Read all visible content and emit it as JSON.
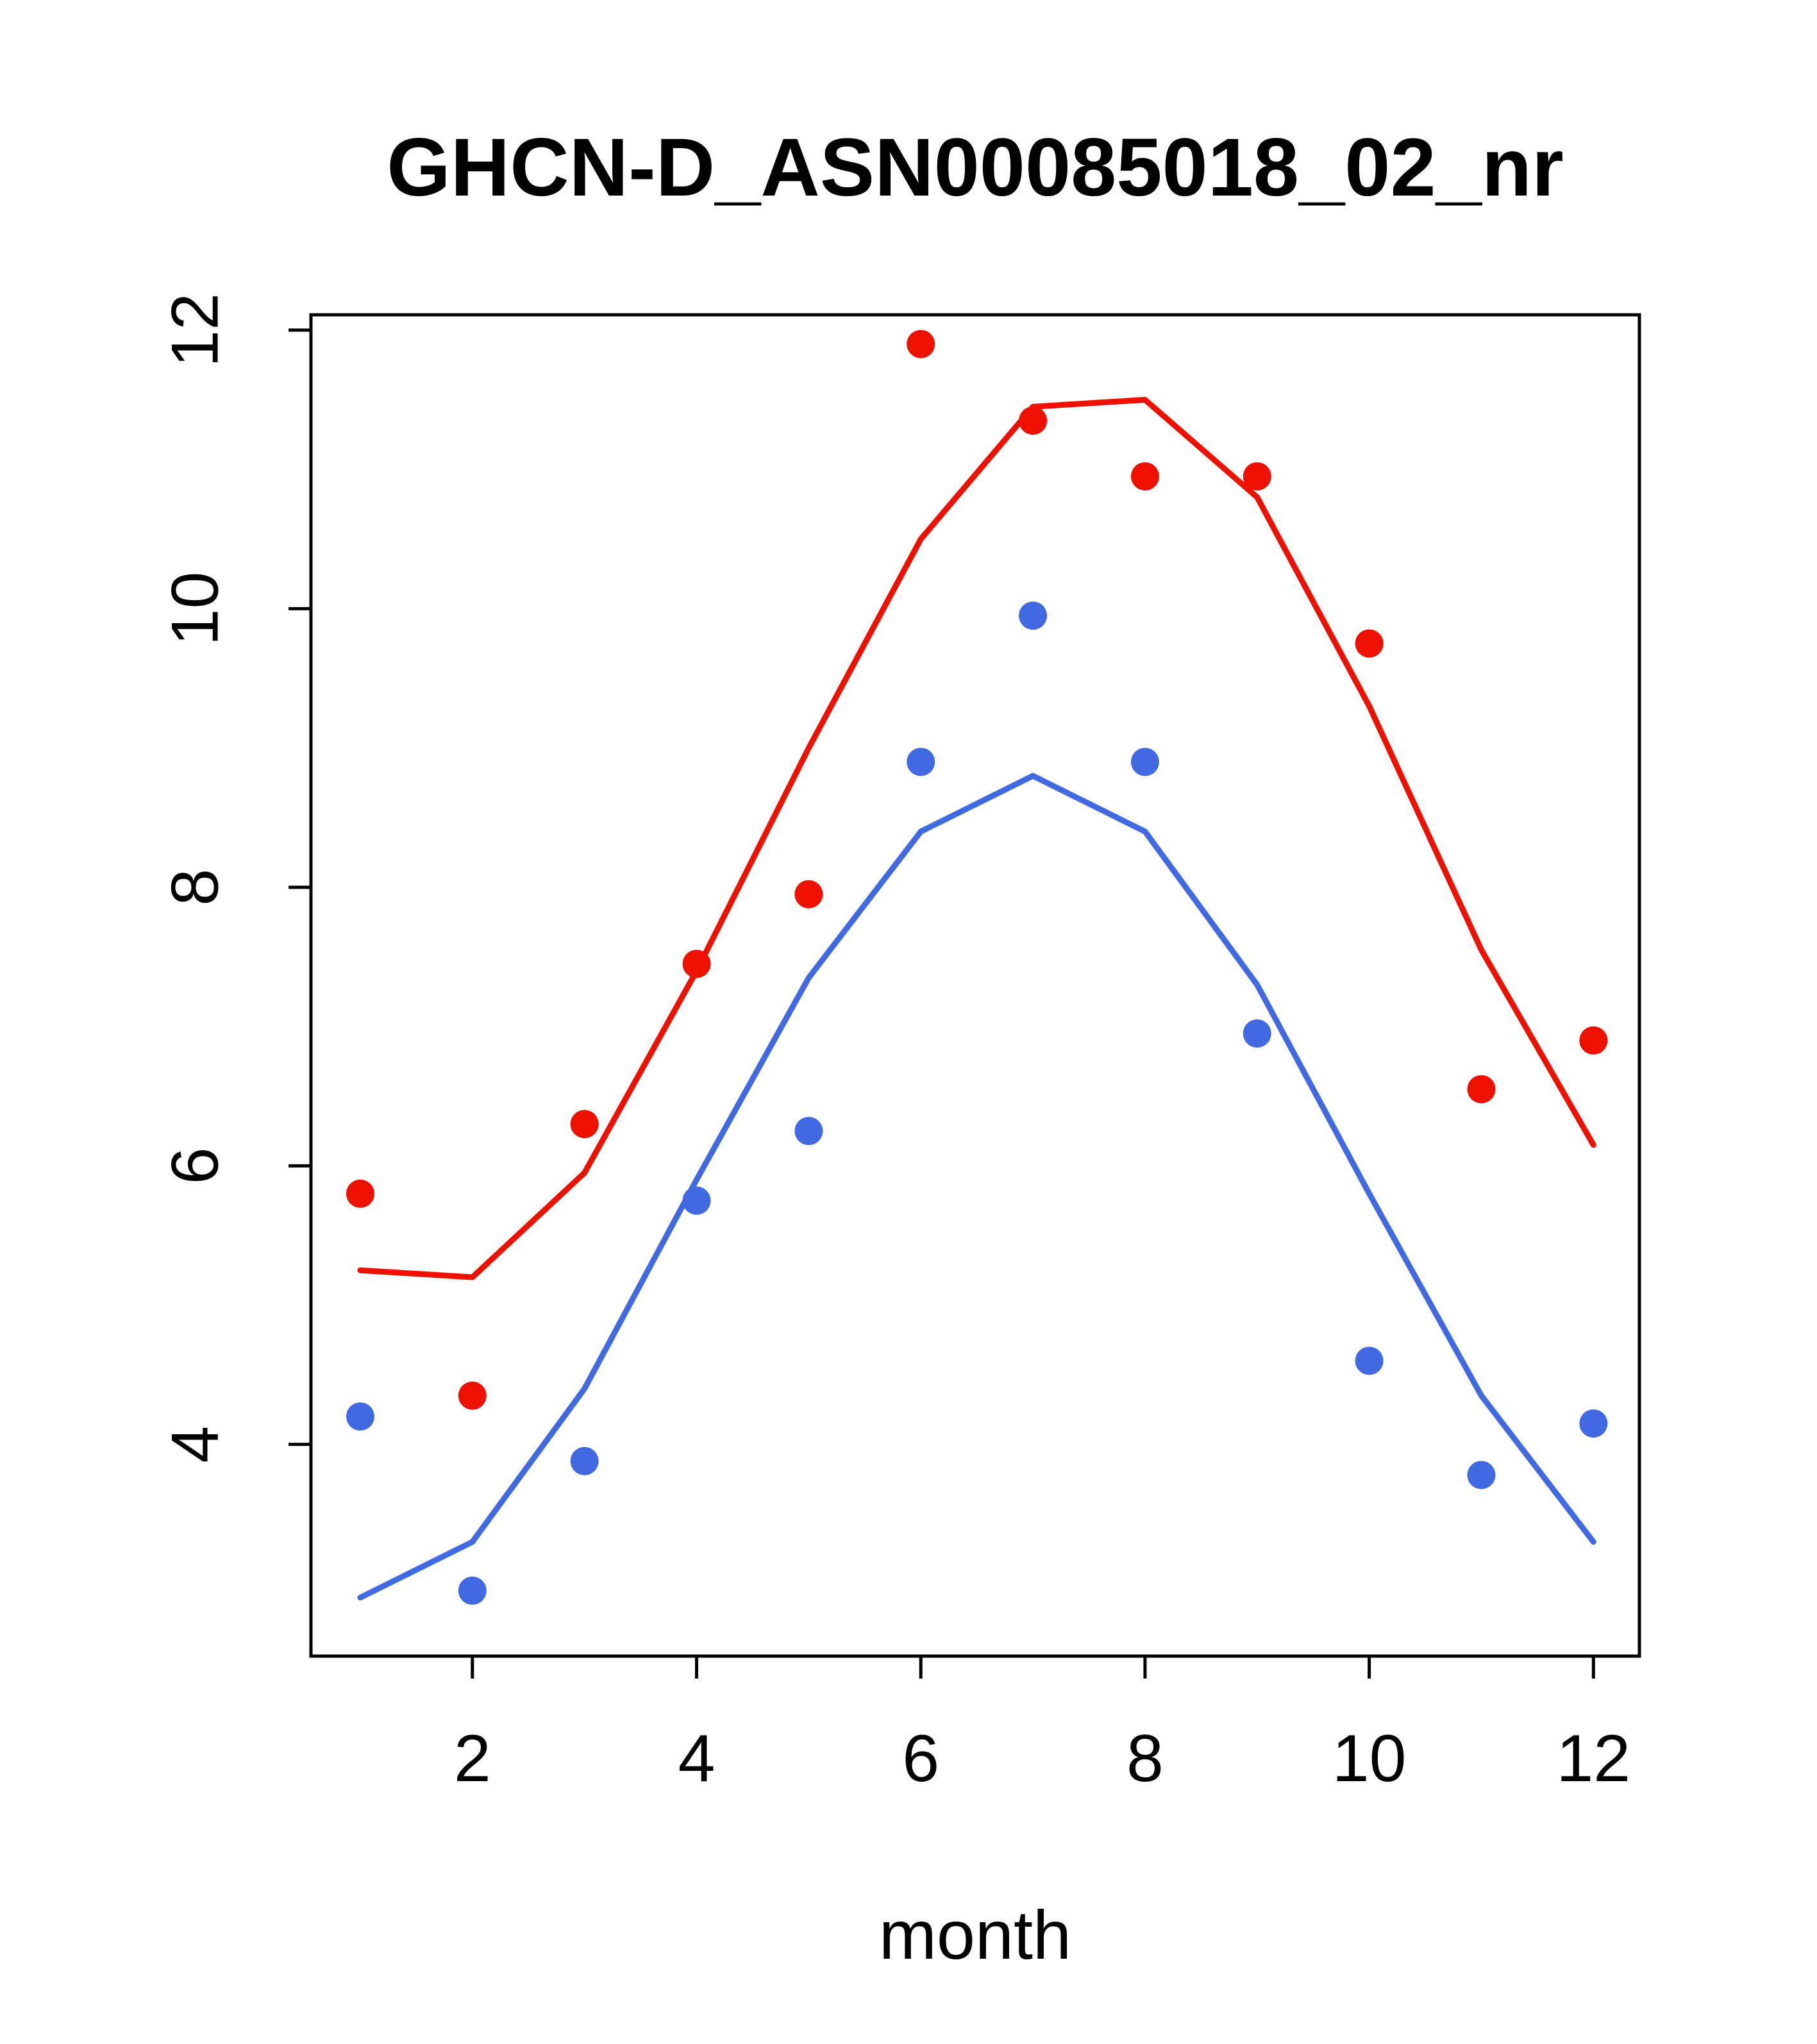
{
  "chart_data": {
    "type": "line",
    "title": "GHCN-D_ASN00085018_02_nr",
    "xlabel": "month",
    "ylabel": "",
    "x": [
      1,
      2,
      3,
      4,
      5,
      6,
      7,
      8,
      9,
      10,
      11,
      12
    ],
    "xticks": [
      2,
      4,
      6,
      8,
      10,
      12
    ],
    "yticks": [
      4,
      6,
      8,
      10,
      12
    ],
    "xlim": [
      0.56,
      12.41
    ],
    "ylim": [
      2.48,
      12.11
    ],
    "grid": false,
    "legend": "none",
    "colors": {
      "red": "#ee1100",
      "blue": "#4169e1"
    },
    "series": [
      {
        "name": "red-line",
        "kind": "line",
        "color": "#ee1100",
        "values": [
          5.25,
          5.2,
          5.95,
          7.4,
          9.0,
          10.5,
          11.45,
          11.5,
          10.8,
          9.3,
          7.55,
          6.15
        ]
      },
      {
        "name": "blue-line",
        "kind": "line",
        "color": "#4169e1",
        "values": [
          2.9,
          3.3,
          4.4,
          5.9,
          7.35,
          8.4,
          8.8,
          8.4,
          7.3,
          5.8,
          4.35,
          3.3
        ]
      },
      {
        "name": "red-points",
        "kind": "scatter",
        "color": "#ee1100",
        "values": [
          5.8,
          4.35,
          6.3,
          7.45,
          7.95,
          11.9,
          11.35,
          10.95,
          10.95,
          9.75,
          6.55,
          6.9
        ]
      },
      {
        "name": "blue-points",
        "kind": "scatter",
        "color": "#4169e1",
        "values": [
          4.2,
          2.95,
          3.88,
          5.75,
          6.25,
          8.9,
          9.95,
          8.9,
          6.95,
          4.6,
          3.78,
          4.15
        ]
      }
    ]
  }
}
